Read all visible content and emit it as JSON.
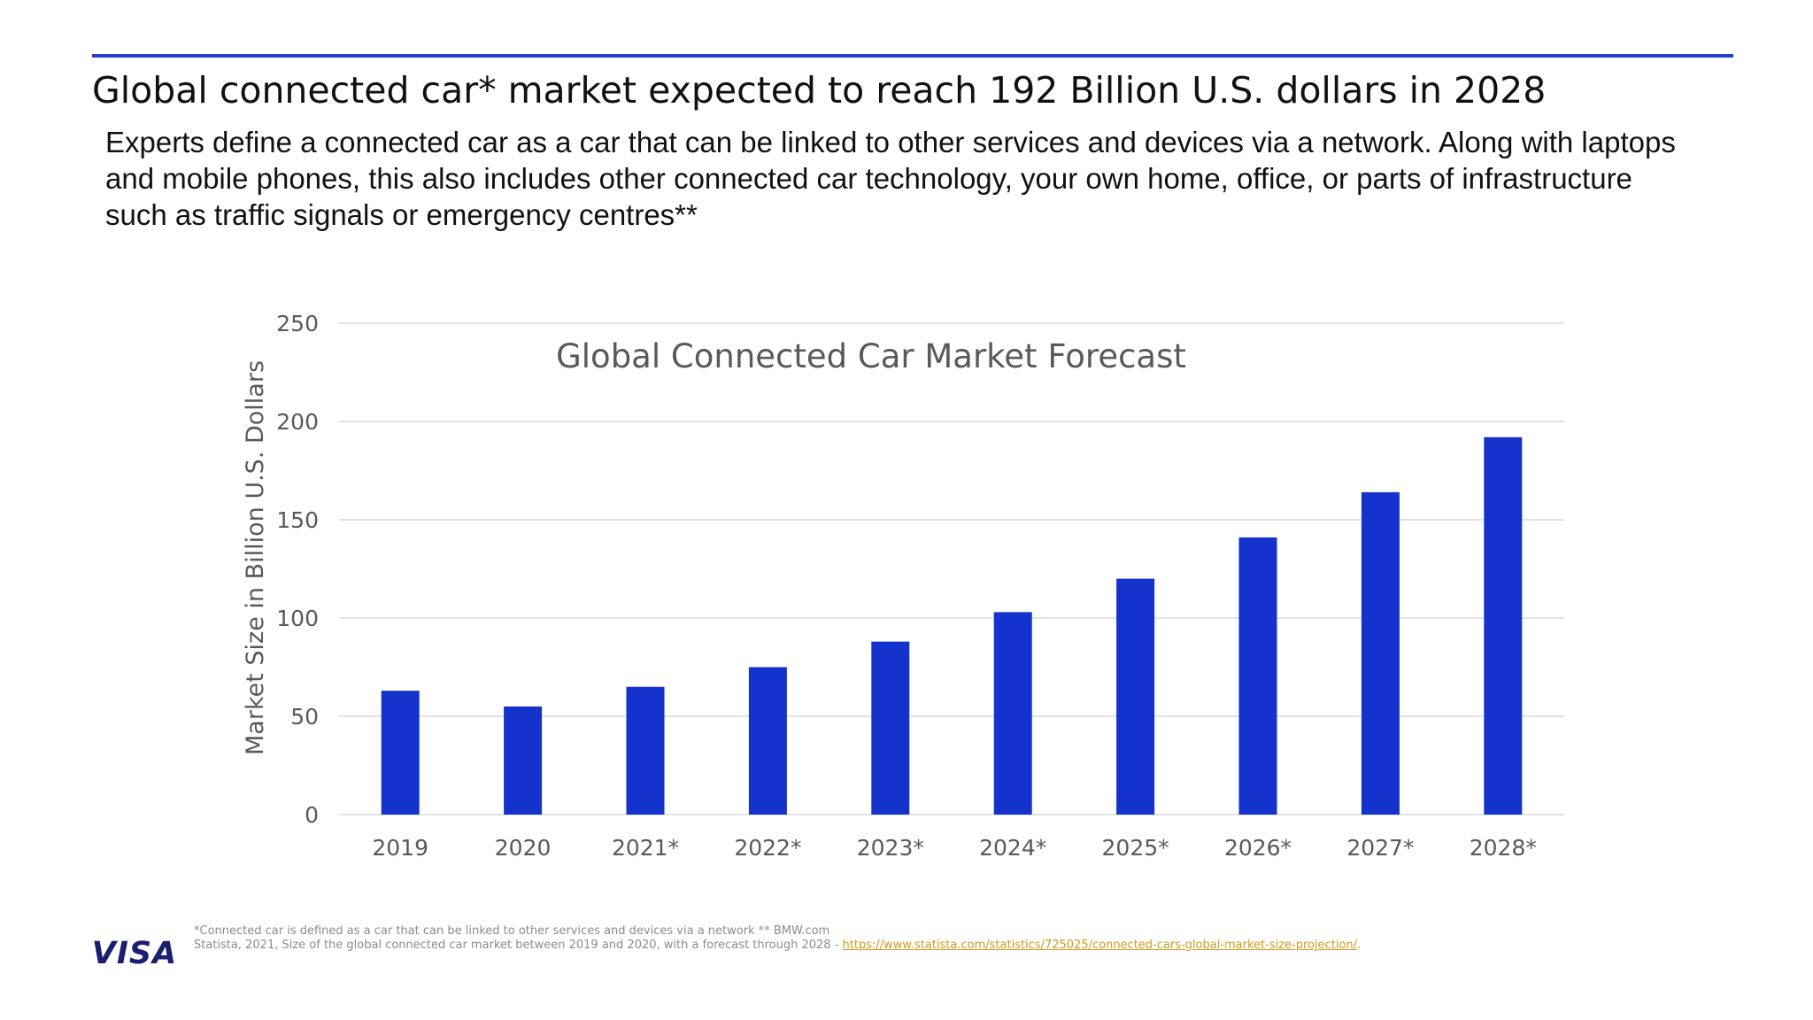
{
  "headline": "Global connected car* market expected to reach 192 Billion U.S. dollars in 2028",
  "subtitle": "Experts define a connected car as a car that can be linked to other services and devices via a network. Along with laptops and mobile phones, this also includes other connected car technology, your own home, office, or parts of infrastructure such as traffic signals or emergency centres**",
  "colors": {
    "accent": "#1f3fcf",
    "bar": "#1432cc",
    "grid": "#d9d9d9",
    "axis_text": "#595959",
    "link": "#d19a1e"
  },
  "chart_data": {
    "type": "bar",
    "title": "Global Connected Car Market Forecast",
    "xlabel": "",
    "ylabel": "Market Size in Billion U.S. Dollars",
    "categories": [
      "2019",
      "2020",
      "2021*",
      "2022*",
      "2023*",
      "2024*",
      "2025*",
      "2026*",
      "2027*",
      "2028*"
    ],
    "values": [
      63,
      55,
      65,
      75,
      88,
      103,
      120,
      141,
      164,
      192
    ],
    "ylim": [
      0,
      250
    ],
    "yticks": [
      "0",
      "50",
      "100",
      "150",
      "200",
      "250"
    ],
    "grid": true,
    "legend": "none"
  },
  "footnotes": {
    "line1": "*Connected car is defined as a car that can be linked to other services and devices via a network  ** BMW.com",
    "line2_prefix": "Statista, 2021, Size of the global connected car market between 2019 and 2020, with a forecast through 2028 - ",
    "link_text": "https://www.statista.com/statistics/725025/connected-cars-global-market-size-projection/",
    "line2_suffix": "."
  },
  "logo": {
    "text": "VISA",
    "icon": "visa-logo"
  }
}
